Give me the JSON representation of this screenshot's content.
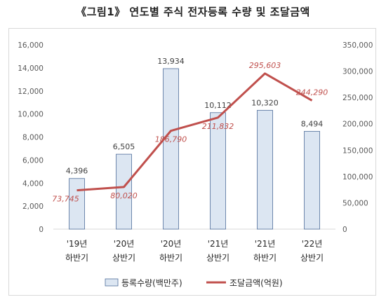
{
  "title": "《그림1》 연도별 주식 전자등록 수량 및 조달금액",
  "chart_data": {
    "type": "bar+line",
    "categories": [
      [
        "'19년",
        "하반기"
      ],
      [
        "'20년",
        "상반기"
      ],
      [
        "'20년",
        "하반기"
      ],
      [
        "'21년",
        "상반기"
      ],
      [
        "'21년",
        "하반기"
      ],
      [
        "'22년",
        "상반기"
      ]
    ],
    "series": [
      {
        "name": "등록수량(백만주)",
        "type": "bar",
        "axis": "left",
        "values": [
          4396,
          6505,
          13934,
          10112,
          10320,
          8494
        ],
        "labels": [
          "4,396",
          "6,505",
          "13,934",
          "10,112",
          "10,320",
          "8,494"
        ],
        "color": "#dce6f2",
        "stroke": "#4f6d9a"
      },
      {
        "name": "조달금액(억원)",
        "type": "line",
        "axis": "right",
        "values": [
          73745,
          80020,
          186790,
          211832,
          295603,
          244290
        ],
        "labels": [
          "73,745",
          "80,020",
          "186,790",
          "211,832",
          "295,603",
          "244,290"
        ],
        "color": "#c0504d"
      }
    ],
    "y_left": {
      "range": [
        0,
        16000
      ],
      "ticks": [
        0,
        2000,
        4000,
        6000,
        8000,
        10000,
        12000,
        14000,
        16000
      ],
      "tick_labels": [
        "0",
        "2,000",
        "4,000",
        "6,000",
        "8,000",
        "10,000",
        "12,000",
        "14,000",
        "16,000"
      ]
    },
    "y_right": {
      "range": [
        0,
        350000
      ],
      "ticks": [
        0,
        50000,
        100000,
        150000,
        200000,
        250000,
        300000,
        350000
      ],
      "tick_labels": [
        "0",
        "50,000",
        "100,000",
        "150,000",
        "200,000",
        "250,000",
        "300,000",
        "350,000"
      ]
    },
    "grid": false,
    "legend": "bottom"
  }
}
